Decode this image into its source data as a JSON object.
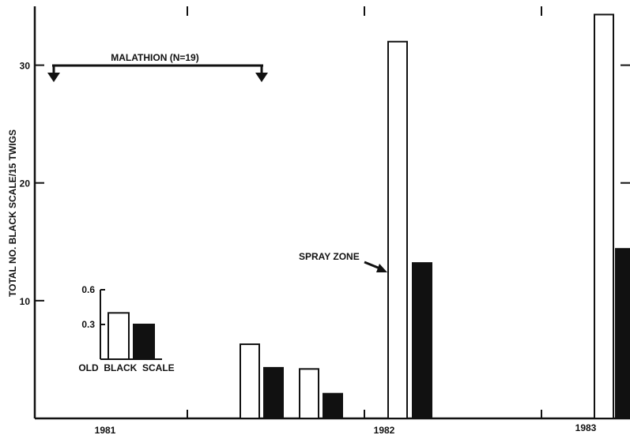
{
  "chart_data": [
    {
      "type": "bar",
      "title": "",
      "ylabel": "TOTAL NO. BLACK SCALE/15 TWIGS",
      "xlabel": "",
      "ylim": [
        0,
        35
      ],
      "yticks": [
        10,
        20,
        30
      ],
      "xticks": [
        "1981",
        "1982",
        "1983"
      ],
      "grid": false,
      "series_colors": {
        "open": "#ffffff",
        "solid": "#111111"
      },
      "bar_pairs": [
        {
          "open": 6.3,
          "solid": 4.3
        },
        {
          "open": 4.2,
          "solid": 2.1
        },
        {
          "open": 32,
          "solid": 13.2
        },
        {
          "open": 34.3,
          "solid": 14.4
        }
      ],
      "annotations": {
        "treatment": "MALATHION (N=19)",
        "spray_zone": "SPRAY ZONE"
      }
    },
    {
      "type": "bar",
      "title": "",
      "xlabel": "OLD  BLACK  SCALE",
      "ylabel": "",
      "ylim": [
        0,
        0.6
      ],
      "yticks": [
        "0.3",
        "0.6"
      ],
      "values": {
        "open": 0.4,
        "solid": 0.3
      }
    }
  ]
}
